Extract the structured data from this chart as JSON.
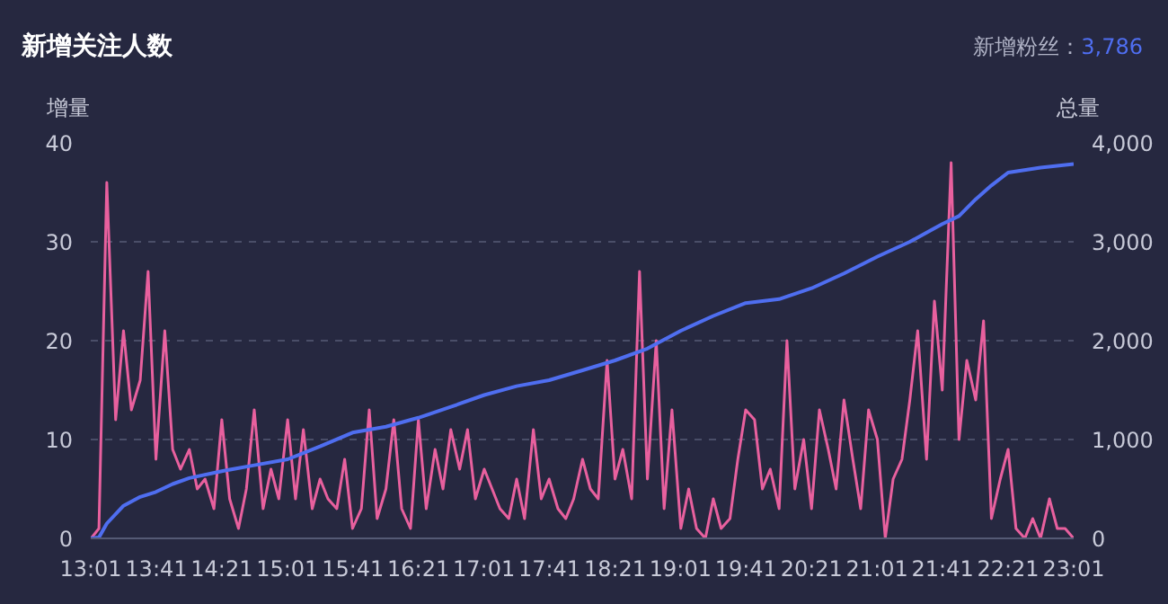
{
  "chart_data": {
    "type": "line",
    "title": "新增关注人数",
    "ylabel": "增量",
    "y2label": "总量",
    "annotations": [
      "新增粉丝：",
      "3,786"
    ],
    "xlim": [
      13.0167,
      23.0167
    ],
    "xticks": [
      {
        "value": 13.0167,
        "label": "13:01"
      },
      {
        "value": 13.6833,
        "label": "13:41"
      },
      {
        "value": 14.35,
        "label": "14:21"
      },
      {
        "value": 15.0167,
        "label": "15:01"
      },
      {
        "value": 15.6833,
        "label": "15:41"
      },
      {
        "value": 16.35,
        "label": "16:21"
      },
      {
        "value": 17.0167,
        "label": "17:01"
      },
      {
        "value": 17.6833,
        "label": "17:41"
      },
      {
        "value": 18.35,
        "label": "18:21"
      },
      {
        "value": 19.0167,
        "label": "19:01"
      },
      {
        "value": 19.6833,
        "label": "19:41"
      },
      {
        "value": 20.35,
        "label": "20:21"
      },
      {
        "value": 21.0167,
        "label": "21:01"
      },
      {
        "value": 21.6833,
        "label": "21:41"
      },
      {
        "value": 22.35,
        "label": "22:21"
      },
      {
        "value": 23.0167,
        "label": "23:01"
      }
    ],
    "ylim": [
      0,
      40
    ],
    "yticks": [
      0,
      10,
      20,
      30,
      40
    ],
    "y2lim": [
      0,
      4000
    ],
    "y2ticks": [
      {
        "value": 0,
        "label": "0"
      },
      {
        "value": 1000,
        "label": "1,000"
      },
      {
        "value": 2000,
        "label": "2,000"
      },
      {
        "value": 3000,
        "label": "3,000"
      },
      {
        "value": 4000,
        "label": "4,000"
      }
    ],
    "grid": "y",
    "marker": "none",
    "line_style": "solid",
    "series": [
      {
        "color": "#e8609e",
        "x": [
          13.02,
          13.1,
          13.18,
          13.27,
          13.35,
          13.43,
          13.52,
          13.6,
          13.68,
          13.77,
          13.85,
          13.93,
          14.02,
          14.1,
          14.18,
          14.27,
          14.35,
          14.43,
          14.52,
          14.6,
          14.68,
          14.77,
          14.85,
          14.93,
          15.02,
          15.1,
          15.18,
          15.27,
          15.35,
          15.43,
          15.52,
          15.6,
          15.68,
          15.77,
          15.85,
          15.93,
          16.02,
          16.1,
          16.18,
          16.27,
          16.35,
          16.43,
          16.52,
          16.6,
          16.68,
          16.77,
          16.85,
          16.93,
          17.02,
          17.1,
          17.18,
          17.27,
          17.35,
          17.43,
          17.52,
          17.6,
          17.68,
          17.77,
          17.85,
          17.93,
          18.02,
          18.1,
          18.18,
          18.27,
          18.35,
          18.43,
          18.52,
          18.6,
          18.68,
          18.77,
          18.85,
          18.93,
          19.02,
          19.1,
          19.18,
          19.27,
          19.35,
          19.43,
          19.52,
          19.6,
          19.68,
          19.77,
          19.85,
          19.93,
          20.02,
          20.1,
          20.18,
          20.27,
          20.35,
          20.43,
          20.52,
          20.6,
          20.68,
          20.77,
          20.85,
          20.93,
          21.02,
          21.1,
          21.18,
          21.27,
          21.35,
          21.43,
          21.52,
          21.6,
          21.68,
          21.77,
          21.85,
          21.93,
          22.02,
          22.1,
          22.18,
          22.27,
          22.35,
          22.43,
          22.52,
          22.6,
          22.68,
          22.77,
          22.85,
          22.93,
          23.0167
        ],
        "values": [
          0,
          1,
          36,
          12,
          21,
          13,
          16,
          27,
          8,
          21,
          9,
          7,
          9,
          5,
          6,
          3,
          12,
          4,
          1,
          5,
          13,
          3,
          7,
          4,
          12,
          4,
          11,
          3,
          6,
          4,
          3,
          8,
          1,
          3,
          13,
          2,
          5,
          12,
          3,
          1,
          12,
          3,
          9,
          5,
          11,
          7,
          11,
          4,
          7,
          5,
          3,
          2,
          6,
          2,
          11,
          4,
          6,
          3,
          2,
          4,
          8,
          5,
          4,
          18,
          6,
          9,
          4,
          27,
          6,
          20,
          3,
          13,
          1,
          5,
          1,
          0,
          4,
          1,
          2,
          8,
          13,
          12,
          5,
          7,
          3,
          20,
          5,
          10,
          3,
          13,
          9,
          5,
          14,
          8,
          3,
          13,
          10,
          0,
          6,
          8,
          14,
          21,
          8,
          24,
          15,
          38,
          10,
          18,
          14,
          22,
          2,
          6,
          9,
          1,
          0,
          2,
          0,
          4,
          1,
          1,
          0
        ]
      },
      {
        "color": "#4f6ef0",
        "axis": "y2",
        "x": [
          13.02,
          13.1,
          13.18,
          13.35,
          13.52,
          13.68,
          13.85,
          14.02,
          14.35,
          14.68,
          15.02,
          15.35,
          15.68,
          16.02,
          16.35,
          16.68,
          17.02,
          17.35,
          17.68,
          18.02,
          18.35,
          18.68,
          19.02,
          19.35,
          19.68,
          20.02,
          20.35,
          20.68,
          21.02,
          21.35,
          21.68,
          21.85,
          22.02,
          22.18,
          22.35,
          22.68,
          23.0167
        ],
        "values": [
          0,
          10,
          150,
          330,
          420,
          470,
          550,
          610,
          680,
          740,
          800,
          930,
          1070,
          1130,
          1220,
          1330,
          1450,
          1540,
          1600,
          1700,
          1800,
          1920,
          2100,
          2250,
          2380,
          2420,
          2530,
          2680,
          2850,
          3000,
          3180,
          3260,
          3430,
          3570,
          3700,
          3750,
          3786
        ]
      }
    ]
  }
}
